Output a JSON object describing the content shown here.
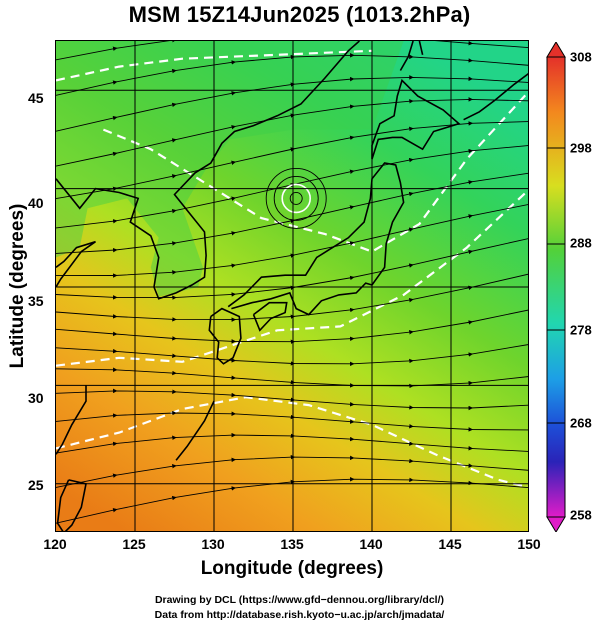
{
  "title": "MSM 15Z14Jun2025 (1013.2hPa)",
  "x_axis": {
    "label": "Longitude (degrees)",
    "ticks": [
      "120",
      "125",
      "130",
      "135",
      "140",
      "145",
      "150"
    ]
  },
  "y_axis": {
    "label": "Latitude  (degrees)",
    "ticks": [
      "45",
      "40",
      "35",
      "30",
      "25"
    ]
  },
  "colorbar": {
    "ticks": [
      "308",
      "298",
      "288",
      "278",
      "268",
      "258"
    ],
    "range": [
      258,
      308
    ]
  },
  "map": {
    "lon_range": [
      120,
      150
    ],
    "lat_range": [
      22.5,
      47.5
    ],
    "colors": {
      "cool": "#33d35a",
      "mid": "#aee022",
      "warm": "#f0a01e",
      "coast": "#000000",
      "isotherm": "#ffffff"
    }
  },
  "credits": {
    "line1": "Drawing by DCL (https://www.gfd−dennou.org/library/dcl/)",
    "line2": "Data from http://database.rish.kyoto−u.ac.jp/arch/jmadata/"
  }
}
